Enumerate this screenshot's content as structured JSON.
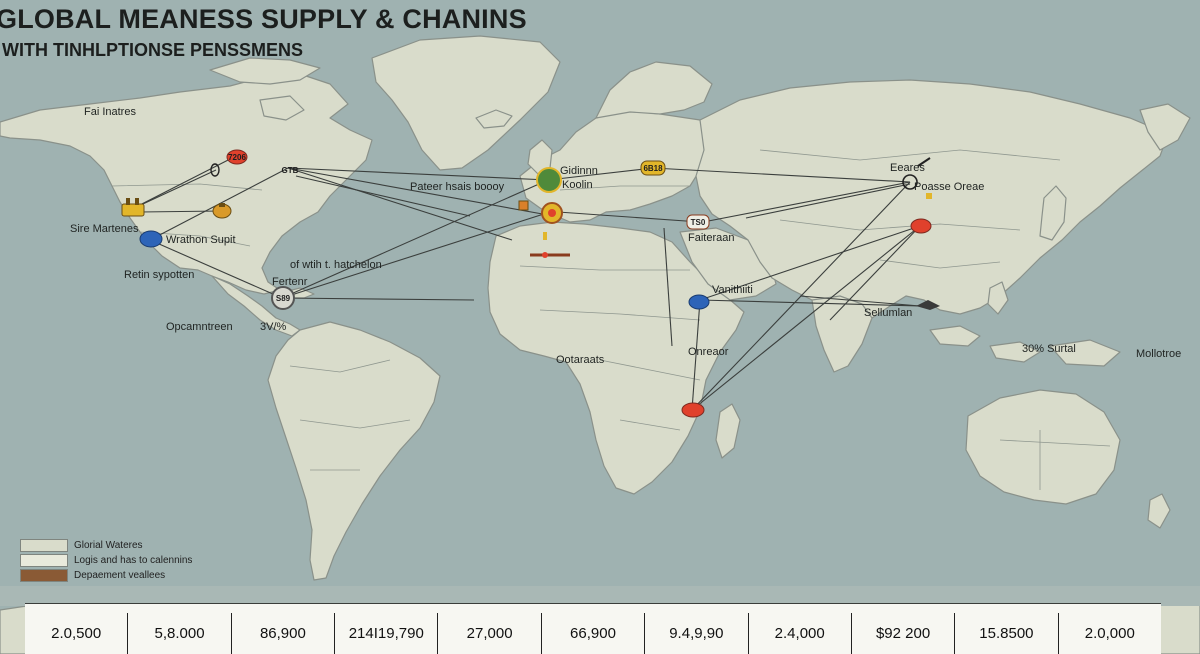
{
  "header": {
    "title": "GLOBAL MEANESS SUPPLY & CHANINS",
    "subtitle": "WITH TINHLPTIONSE PENSSMENS"
  },
  "labels": {
    "north_america_top": "Fai Inatres",
    "west_coast": "Sire Martenes",
    "central_us": "Wrathon Supit",
    "mexico": "Retin sypotten",
    "caribbean_note": "of wtih t. hatchelon",
    "caribbean_sub": "Fertenr",
    "south_america": "Opcamntreen",
    "south_america_pct": "3V/%",
    "europe_west": "Gidinnn",
    "europe_sub": "Koolin",
    "atlantic_note": "Pateer hsais boooy",
    "africa_north": "Faiteraan",
    "africa_east": "Vanithiiti",
    "africa_west": "Ootaraats",
    "africa_centre": "Onreaor",
    "asia_north": "Eeares",
    "asia_east": "Poasse Oreae",
    "southeast_asia": "Sellumlan",
    "pacific_pct": "30% Surtal",
    "far_east": "Mollotroe"
  },
  "hub_tags": {
    "caribbean": "S89",
    "canada": "GTB",
    "us_north": "7206",
    "turkey": "6B18",
    "middle_east": "TS0"
  },
  "legend": [
    {
      "label": "Glorial Wateres",
      "color": "#d9dccb"
    },
    {
      "label": "Logis and has to calennins",
      "color": "#e9eadc"
    },
    {
      "label": "Depaement veallees",
      "color": "#8a5a35"
    }
  ],
  "stats": [
    "2.0,500",
    "5,8.000",
    "86,900",
    "214I19,790",
    "27,000",
    "66,900",
    "9.4,9,90",
    "2.4,000",
    "$92 200",
    "15.8500",
    "2.0,000"
  ],
  "colors": {
    "ocean": "#9fb2b1",
    "land": "#d9dccb",
    "hub_red": "#e0412c",
    "hub_blue": "#2d64b8",
    "hub_yellow": "#e2b62a",
    "hub_green": "#4f8a3a",
    "hub_orange": "#d9802a"
  }
}
